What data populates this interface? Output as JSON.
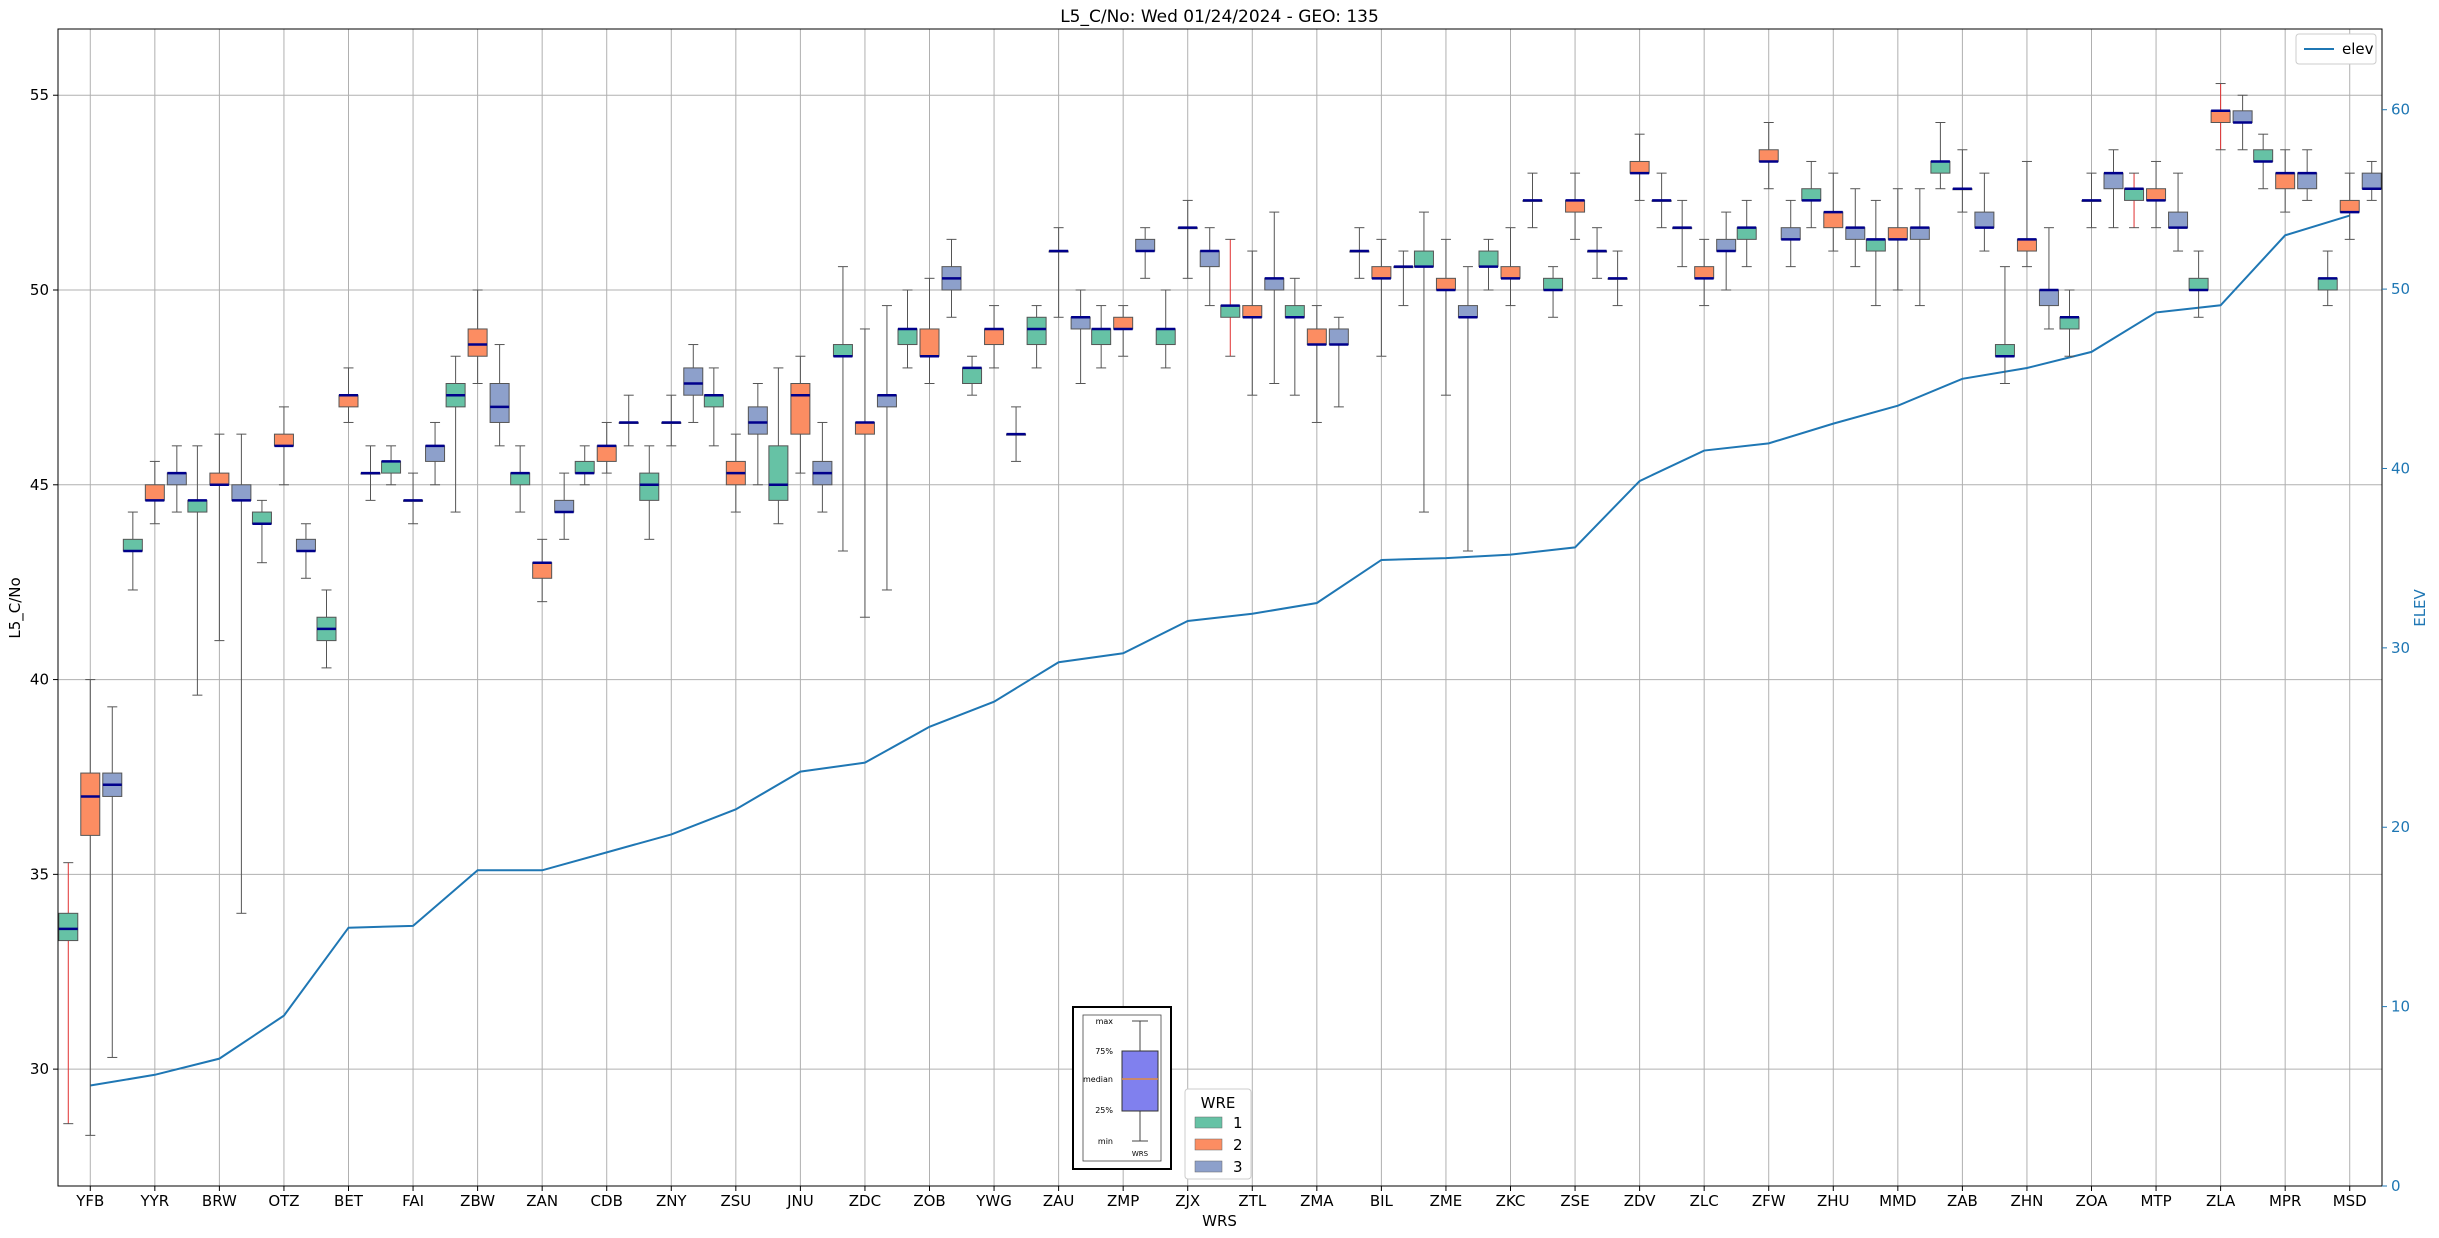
{
  "chart_data": {
    "type": "box",
    "title": "L5_C/No: Wed 01/24/2024 - GEO: 135",
    "xlabel": "WRS",
    "ylabel": "L5_C/No",
    "ylabel_right": "ELEV",
    "ylim": [
      27.0,
      56.7
    ],
    "ylim_right": [
      0,
      64.5
    ],
    "yticks": [
      30,
      35,
      40,
      45,
      50,
      55
    ],
    "yticks_right": [
      0,
      10,
      20,
      30,
      40,
      50,
      60
    ],
    "grid": true,
    "legend": {
      "position": "top-right",
      "entries": [
        "elev"
      ]
    },
    "wre_legend": {
      "title": "WRE",
      "position": "bottom-center",
      "entries": [
        "1",
        "2",
        "3"
      ]
    },
    "wre_colors": {
      "1": "#66c2a5",
      "2": "#fc8d62",
      "3": "#8da0cb"
    },
    "elev_color": "#1f77b4",
    "median_color": "#00008b",
    "categories": [
      "YFB",
      "YYR",
      "BRW",
      "OTZ",
      "BET",
      "FAI",
      "ZBW",
      "ZAN",
      "CDB",
      "ZNY",
      "ZSU",
      "JNU",
      "ZDC",
      "ZOB",
      "YWG",
      "ZAU",
      "ZMP",
      "ZJX",
      "ZTL",
      "ZMA",
      "BIL",
      "ZME",
      "ZKC",
      "ZSE",
      "ZDV",
      "ZLC",
      "ZFW",
      "ZHU",
      "MMD",
      "ZAB",
      "ZHN",
      "ZOA",
      "MTP",
      "ZLA",
      "MPR",
      "MSD"
    ],
    "elev": [
      5.6,
      6.2,
      7.1,
      9.5,
      14.4,
      14.5,
      17.6,
      17.6,
      18.6,
      19.6,
      21.0,
      23.1,
      23.6,
      25.6,
      27.0,
      29.2,
      29.7,
      31.5,
      31.9,
      32.5,
      34.9,
      35.0,
      35.2,
      35.6,
      39.3,
      41.0,
      41.4,
      42.5,
      43.5,
      45.0,
      45.6,
      46.5,
      48.7,
      49.1,
      53.0,
      54.1
    ],
    "boxes": [
      {
        "cat": "YFB",
        "wre": 1,
        "min": 28.6,
        "q1": 33.3,
        "med": 33.6,
        "q3": 34.0,
        "max": 35.3
      },
      {
        "cat": "YFB",
        "wre": 2,
        "min": 28.3,
        "q1": 36.0,
        "med": 37.0,
        "q3": 37.6,
        "max": 40.0
      },
      {
        "cat": "YFB",
        "wre": 3,
        "min": 30.3,
        "q1": 37.0,
        "med": 37.3,
        "q3": 37.6,
        "max": 39.3
      },
      {
        "cat": "YYR",
        "wre": 1,
        "min": 42.3,
        "q1": 43.3,
        "med": 43.3,
        "q3": 43.6,
        "max": 44.3
      },
      {
        "cat": "YYR",
        "wre": 2,
        "min": 44.0,
        "q1": 44.6,
        "med": 44.6,
        "q3": 45.0,
        "max": 45.6
      },
      {
        "cat": "YYR",
        "wre": 3,
        "min": 44.3,
        "q1": 45.0,
        "med": 45.3,
        "q3": 45.3,
        "max": 46.0
      },
      {
        "cat": "BRW",
        "wre": 1,
        "min": 39.6,
        "q1": 44.3,
        "med": 44.6,
        "q3": 44.6,
        "max": 46.0
      },
      {
        "cat": "BRW",
        "wre": 2,
        "min": 41.0,
        "q1": 45.0,
        "med": 45.0,
        "q3": 45.3,
        "max": 46.3
      },
      {
        "cat": "BRW",
        "wre": 3,
        "min": 34.0,
        "q1": 44.6,
        "med": 44.6,
        "q3": 45.0,
        "max": 46.3
      },
      {
        "cat": "OTZ",
        "wre": 1,
        "min": 43.0,
        "q1": 44.0,
        "med": 44.0,
        "q3": 44.3,
        "max": 44.6
      },
      {
        "cat": "OTZ",
        "wre": 2,
        "min": 45.0,
        "q1": 46.0,
        "med": 46.0,
        "q3": 46.3,
        "max": 47.0
      },
      {
        "cat": "OTZ",
        "wre": 3,
        "min": 42.6,
        "q1": 43.3,
        "med": 43.3,
        "q3": 43.6,
        "max": 44.0
      },
      {
        "cat": "BET",
        "wre": 1,
        "min": 40.3,
        "q1": 41.0,
        "med": 41.3,
        "q3": 41.6,
        "max": 42.3
      },
      {
        "cat": "BET",
        "wre": 2,
        "min": 46.6,
        "q1": 47.0,
        "med": 47.3,
        "q3": 47.3,
        "max": 48.0
      },
      {
        "cat": "BET",
        "wre": 3,
        "min": 44.6,
        "q1": 45.3,
        "med": 45.3,
        "q3": 45.3,
        "max": 46.0
      },
      {
        "cat": "FAI",
        "wre": 1,
        "min": 45.0,
        "q1": 45.3,
        "med": 45.6,
        "q3": 45.6,
        "max": 46.0
      },
      {
        "cat": "FAI",
        "wre": 2,
        "min": 44.0,
        "q1": 44.6,
        "med": 44.6,
        "q3": 44.6,
        "max": 45.3
      },
      {
        "cat": "FAI",
        "wre": 3,
        "min": 45.0,
        "q1": 45.6,
        "med": 46.0,
        "q3": 46.0,
        "max": 46.6
      },
      {
        "cat": "ZBW",
        "wre": 1,
        "min": 44.3,
        "q1": 47.0,
        "med": 47.3,
        "q3": 47.6,
        "max": 48.3
      },
      {
        "cat": "ZBW",
        "wre": 2,
        "min": 47.6,
        "q1": 48.3,
        "med": 48.6,
        "q3": 49.0,
        "max": 50.0
      },
      {
        "cat": "ZBW",
        "wre": 3,
        "min": 46.0,
        "q1": 46.6,
        "med": 47.0,
        "q3": 47.6,
        "max": 48.6
      },
      {
        "cat": "ZAN",
        "wre": 1,
        "min": 44.3,
        "q1": 45.0,
        "med": 45.3,
        "q3": 45.3,
        "max": 46.0
      },
      {
        "cat": "ZAN",
        "wre": 2,
        "min": 42.0,
        "q1": 42.6,
        "med": 43.0,
        "q3": 43.0,
        "max": 43.6
      },
      {
        "cat": "ZAN",
        "wre": 3,
        "min": 43.6,
        "q1": 44.3,
        "med": 44.3,
        "q3": 44.6,
        "max": 45.3
      },
      {
        "cat": "CDB",
        "wre": 1,
        "min": 45.0,
        "q1": 45.3,
        "med": 45.3,
        "q3": 45.6,
        "max": 46.0
      },
      {
        "cat": "CDB",
        "wre": 2,
        "min": 45.3,
        "q1": 45.6,
        "med": 46.0,
        "q3": 46.0,
        "max": 46.6
      },
      {
        "cat": "CDB",
        "wre": 3,
        "min": 46.0,
        "q1": 46.6,
        "med": 46.6,
        "q3": 46.6,
        "max": 47.3
      },
      {
        "cat": "ZNY",
        "wre": 1,
        "min": 43.6,
        "q1": 44.6,
        "med": 45.0,
        "q3": 45.3,
        "max": 46.0
      },
      {
        "cat": "ZNY",
        "wre": 2,
        "min": 46.0,
        "q1": 46.6,
        "med": 46.6,
        "q3": 46.6,
        "max": 47.3
      },
      {
        "cat": "ZNY",
        "wre": 3,
        "min": 46.6,
        "q1": 47.3,
        "med": 47.6,
        "q3": 48.0,
        "max": 48.6
      },
      {
        "cat": "ZSU",
        "wre": 1,
        "min": 46.0,
        "q1": 47.0,
        "med": 47.3,
        "q3": 47.3,
        "max": 48.0
      },
      {
        "cat": "ZSU",
        "wre": 2,
        "min": 44.3,
        "q1": 45.0,
        "med": 45.3,
        "q3": 45.6,
        "max": 46.3
      },
      {
        "cat": "ZSU",
        "wre": 3,
        "min": 45.0,
        "q1": 46.3,
        "med": 46.6,
        "q3": 47.0,
        "max": 47.6
      },
      {
        "cat": "JNU",
        "wre": 1,
        "min": 44.0,
        "q1": 44.6,
        "med": 45.0,
        "q3": 46.0,
        "max": 48.0
      },
      {
        "cat": "JNU",
        "wre": 2,
        "min": 45.3,
        "q1": 46.3,
        "med": 47.3,
        "q3": 47.6,
        "max": 48.3
      },
      {
        "cat": "JNU",
        "wre": 3,
        "min": 44.3,
        "q1": 45.0,
        "med": 45.3,
        "q3": 45.6,
        "max": 46.6
      },
      {
        "cat": "ZDC",
        "wre": 1,
        "min": 43.3,
        "q1": 48.3,
        "med": 48.3,
        "q3": 48.6,
        "max": 50.6
      },
      {
        "cat": "ZDC",
        "wre": 2,
        "min": 41.6,
        "q1": 46.3,
        "med": 46.6,
        "q3": 46.6,
        "max": 49.0
      },
      {
        "cat": "ZDC",
        "wre": 3,
        "min": 42.3,
        "q1": 47.0,
        "med": 47.3,
        "q3": 47.3,
        "max": 49.6
      },
      {
        "cat": "ZOB",
        "wre": 1,
        "min": 48.0,
        "q1": 48.6,
        "med": 49.0,
        "q3": 49.0,
        "max": 50.0
      },
      {
        "cat": "ZOB",
        "wre": 2,
        "min": 47.6,
        "q1": 48.3,
        "med": 48.3,
        "q3": 49.0,
        "max": 50.3
      },
      {
        "cat": "ZOB",
        "wre": 3,
        "min": 49.3,
        "q1": 50.0,
        "med": 50.3,
        "q3": 50.6,
        "max": 51.3
      },
      {
        "cat": "YWG",
        "wre": 1,
        "min": 47.3,
        "q1": 47.6,
        "med": 48.0,
        "q3": 48.0,
        "max": 48.3
      },
      {
        "cat": "YWG",
        "wre": 2,
        "min": 48.0,
        "q1": 48.6,
        "med": 49.0,
        "q3": 49.0,
        "max": 49.6
      },
      {
        "cat": "YWG",
        "wre": 3,
        "min": 45.6,
        "q1": 46.3,
        "med": 46.3,
        "q3": 46.3,
        "max": 47.0
      },
      {
        "cat": "ZAU",
        "wre": 1,
        "min": 48.0,
        "q1": 48.6,
        "med": 49.0,
        "q3": 49.3,
        "max": 49.6
      },
      {
        "cat": "ZAU",
        "wre": 2,
        "min": 49.3,
        "q1": 51.0,
        "med": 51.0,
        "q3": 51.0,
        "max": 51.6
      },
      {
        "cat": "ZAU",
        "wre": 3,
        "min": 47.6,
        "q1": 49.0,
        "med": 49.3,
        "q3": 49.3,
        "max": 50.0
      },
      {
        "cat": "ZMP",
        "wre": 1,
        "min": 48.0,
        "q1": 48.6,
        "med": 49.0,
        "q3": 49.0,
        "max": 49.6
      },
      {
        "cat": "ZMP",
        "wre": 2,
        "min": 48.3,
        "q1": 49.0,
        "med": 49.0,
        "q3": 49.3,
        "max": 49.6
      },
      {
        "cat": "ZMP",
        "wre": 3,
        "min": 50.3,
        "q1": 51.0,
        "med": 51.0,
        "q3": 51.3,
        "max": 51.6
      },
      {
        "cat": "ZJX",
        "wre": 1,
        "min": 48.0,
        "q1": 48.6,
        "med": 49.0,
        "q3": 49.0,
        "max": 50.0
      },
      {
        "cat": "ZJX",
        "wre": 2,
        "min": 50.3,
        "q1": 51.6,
        "med": 51.6,
        "q3": 51.6,
        "max": 52.3
      },
      {
        "cat": "ZJX",
        "wre": 3,
        "min": 49.6,
        "q1": 50.6,
        "med": 51.0,
        "q3": 51.0,
        "max": 51.6
      },
      {
        "cat": "ZTL",
        "wre": 1,
        "min": 48.3,
        "q1": 49.3,
        "med": 49.6,
        "q3": 49.6,
        "max": 51.3
      },
      {
        "cat": "ZTL",
        "wre": 2,
        "min": 47.3,
        "q1": 49.3,
        "med": 49.3,
        "q3": 49.6,
        "max": 51.0
      },
      {
        "cat": "ZTL",
        "wre": 3,
        "min": 47.6,
        "q1": 50.0,
        "med": 50.3,
        "q3": 50.3,
        "max": 52.0
      },
      {
        "cat": "ZMA",
        "wre": 1,
        "min": 47.3,
        "q1": 49.3,
        "med": 49.3,
        "q3": 49.6,
        "max": 50.3
      },
      {
        "cat": "ZMA",
        "wre": 2,
        "min": 46.6,
        "q1": 48.6,
        "med": 48.6,
        "q3": 49.0,
        "max": 49.6
      },
      {
        "cat": "ZMA",
        "wre": 3,
        "min": 47.0,
        "q1": 48.6,
        "med": 48.6,
        "q3": 49.0,
        "max": 49.3
      },
      {
        "cat": "BIL",
        "wre": 1,
        "min": 50.3,
        "q1": 51.0,
        "med": 51.0,
        "q3": 51.0,
        "max": 51.6
      },
      {
        "cat": "BIL",
        "wre": 2,
        "min": 48.3,
        "q1": 50.3,
        "med": 50.3,
        "q3": 50.6,
        "max": 51.3
      },
      {
        "cat": "BIL",
        "wre": 3,
        "min": 49.6,
        "q1": 50.6,
        "med": 50.6,
        "q3": 50.6,
        "max": 51.0
      },
      {
        "cat": "ZME",
        "wre": 1,
        "min": 44.3,
        "q1": 50.6,
        "med": 50.6,
        "q3": 51.0,
        "max": 52.0
      },
      {
        "cat": "ZME",
        "wre": 2,
        "min": 47.3,
        "q1": 50.0,
        "med": 50.0,
        "q3": 50.3,
        "max": 51.3
      },
      {
        "cat": "ZME",
        "wre": 3,
        "min": 43.3,
        "q1": 49.3,
        "med": 49.3,
        "q3": 49.6,
        "max": 50.6
      },
      {
        "cat": "ZKC",
        "wre": 1,
        "min": 50.0,
        "q1": 50.6,
        "med": 50.6,
        "q3": 51.0,
        "max": 51.3
      },
      {
        "cat": "ZKC",
        "wre": 2,
        "min": 49.6,
        "q1": 50.3,
        "med": 50.3,
        "q3": 50.6,
        "max": 51.6
      },
      {
        "cat": "ZKC",
        "wre": 3,
        "min": 51.6,
        "q1": 52.3,
        "med": 52.3,
        "q3": 52.3,
        "max": 53.0
      },
      {
        "cat": "ZSE",
        "wre": 1,
        "min": 49.3,
        "q1": 50.0,
        "med": 50.0,
        "q3": 50.3,
        "max": 50.6
      },
      {
        "cat": "ZSE",
        "wre": 2,
        "min": 51.3,
        "q1": 52.0,
        "med": 52.3,
        "q3": 52.3,
        "max": 53.0
      },
      {
        "cat": "ZSE",
        "wre": 3,
        "min": 50.3,
        "q1": 51.0,
        "med": 51.0,
        "q3": 51.0,
        "max": 51.6
      },
      {
        "cat": "ZDV",
        "wre": 1,
        "min": 49.6,
        "q1": 50.3,
        "med": 50.3,
        "q3": 50.3,
        "max": 51.0
      },
      {
        "cat": "ZDV",
        "wre": 2,
        "min": 52.3,
        "q1": 53.0,
        "med": 53.0,
        "q3": 53.3,
        "max": 54.0
      },
      {
        "cat": "ZDV",
        "wre": 3,
        "min": 51.6,
        "q1": 52.3,
        "med": 52.3,
        "q3": 52.3,
        "max": 53.0
      },
      {
        "cat": "ZLC",
        "wre": 1,
        "min": 50.6,
        "q1": 51.6,
        "med": 51.6,
        "q3": 51.6,
        "max": 52.3
      },
      {
        "cat": "ZLC",
        "wre": 2,
        "min": 49.6,
        "q1": 50.3,
        "med": 50.3,
        "q3": 50.6,
        "max": 51.3
      },
      {
        "cat": "ZLC",
        "wre": 3,
        "min": 50.0,
        "q1": 51.0,
        "med": 51.0,
        "q3": 51.3,
        "max": 52.0
      },
      {
        "cat": "ZFW",
        "wre": 1,
        "min": 50.6,
        "q1": 51.3,
        "med": 51.6,
        "q3": 51.6,
        "max": 52.3
      },
      {
        "cat": "ZFW",
        "wre": 2,
        "min": 52.6,
        "q1": 53.3,
        "med": 53.3,
        "q3": 53.6,
        "max": 54.3
      },
      {
        "cat": "ZFW",
        "wre": 3,
        "min": 50.6,
        "q1": 51.3,
        "med": 51.3,
        "q3": 51.6,
        "max": 52.3
      },
      {
        "cat": "ZHU",
        "wre": 1,
        "min": 51.6,
        "q1": 52.3,
        "med": 52.3,
        "q3": 52.6,
        "max": 53.3
      },
      {
        "cat": "ZHU",
        "wre": 2,
        "min": 51.0,
        "q1": 51.6,
        "med": 52.0,
        "q3": 52.0,
        "max": 53.0
      },
      {
        "cat": "ZHU",
        "wre": 3,
        "min": 50.6,
        "q1": 51.3,
        "med": 51.6,
        "q3": 51.6,
        "max": 52.6
      },
      {
        "cat": "MMD",
        "wre": 1,
        "min": 49.6,
        "q1": 51.0,
        "med": 51.3,
        "q3": 51.3,
        "max": 52.3
      },
      {
        "cat": "MMD",
        "wre": 2,
        "min": 50.0,
        "q1": 51.3,
        "med": 51.3,
        "q3": 51.6,
        "max": 52.6
      },
      {
        "cat": "MMD",
        "wre": 3,
        "min": 49.6,
        "q1": 51.3,
        "med": 51.6,
        "q3": 51.6,
        "max": 52.6
      },
      {
        "cat": "ZAB",
        "wre": 1,
        "min": 52.6,
        "q1": 53.0,
        "med": 53.3,
        "q3": 53.3,
        "max": 54.3
      },
      {
        "cat": "ZAB",
        "wre": 2,
        "min": 52.0,
        "q1": 52.6,
        "med": 52.6,
        "q3": 52.6,
        "max": 53.6
      },
      {
        "cat": "ZAB",
        "wre": 3,
        "min": 51.0,
        "q1": 51.6,
        "med": 51.6,
        "q3": 52.0,
        "max": 53.0
      },
      {
        "cat": "ZHN",
        "wre": 1,
        "min": 47.6,
        "q1": 48.3,
        "med": 48.3,
        "q3": 48.6,
        "max": 50.6
      },
      {
        "cat": "ZHN",
        "wre": 2,
        "min": 50.6,
        "q1": 51.0,
        "med": 51.3,
        "q3": 51.3,
        "max": 53.3
      },
      {
        "cat": "ZHN",
        "wre": 3,
        "min": 49.0,
        "q1": 49.6,
        "med": 50.0,
        "q3": 50.0,
        "max": 51.6
      },
      {
        "cat": "ZOA",
        "wre": 1,
        "min": 48.3,
        "q1": 49.0,
        "med": 49.3,
        "q3": 49.3,
        "max": 50.0
      },
      {
        "cat": "ZOA",
        "wre": 2,
        "min": 51.6,
        "q1": 52.3,
        "med": 52.3,
        "q3": 52.3,
        "max": 53.0
      },
      {
        "cat": "ZOA",
        "wre": 3,
        "min": 51.6,
        "q1": 52.6,
        "med": 53.0,
        "q3": 53.0,
        "max": 53.6
      },
      {
        "cat": "MTP",
        "wre": 1,
        "min": 51.6,
        "q1": 52.3,
        "med": 52.6,
        "q3": 52.6,
        "max": 53.0
      },
      {
        "cat": "MTP",
        "wre": 2,
        "min": 51.6,
        "q1": 52.3,
        "med": 52.3,
        "q3": 52.6,
        "max": 53.3
      },
      {
        "cat": "MTP",
        "wre": 3,
        "min": 51.0,
        "q1": 51.6,
        "med": 51.6,
        "q3": 52.0,
        "max": 53.0
      },
      {
        "cat": "ZLA",
        "wre": 1,
        "min": 49.3,
        "q1": 50.0,
        "med": 50.0,
        "q3": 50.3,
        "max": 51.0
      },
      {
        "cat": "ZLA",
        "wre": 2,
        "min": 53.6,
        "q1": 54.3,
        "med": 54.6,
        "q3": 54.6,
        "max": 55.3
      },
      {
        "cat": "ZLA",
        "wre": 3,
        "min": 53.6,
        "q1": 54.3,
        "med": 54.3,
        "q3": 54.6,
        "max": 55.0
      },
      {
        "cat": "MPR",
        "wre": 1,
        "min": 52.6,
        "q1": 53.3,
        "med": 53.3,
        "q3": 53.6,
        "max": 54.0
      },
      {
        "cat": "MPR",
        "wre": 2,
        "min": 52.0,
        "q1": 52.6,
        "med": 53.0,
        "q3": 53.0,
        "max": 53.6
      },
      {
        "cat": "MPR",
        "wre": 3,
        "min": 52.3,
        "q1": 52.6,
        "med": 53.0,
        "q3": 53.0,
        "max": 53.6
      },
      {
        "cat": "MSD",
        "wre": 1,
        "min": 49.6,
        "q1": 50.0,
        "med": 50.3,
        "q3": 50.3,
        "max": 51.0
      },
      {
        "cat": "MSD",
        "wre": 2,
        "min": 51.3,
        "q1": 52.0,
        "med": 52.0,
        "q3": 52.3,
        "max": 53.0
      },
      {
        "cat": "MSD",
        "wre": 3,
        "min": 52.3,
        "q1": 52.6,
        "med": 52.6,
        "q3": 53.0,
        "max": 53.3
      }
    ],
    "inset_key": {
      "labels": [
        "max",
        "75%",
        "median",
        "25%",
        "min"
      ],
      "xlabel": "WRS"
    }
  }
}
